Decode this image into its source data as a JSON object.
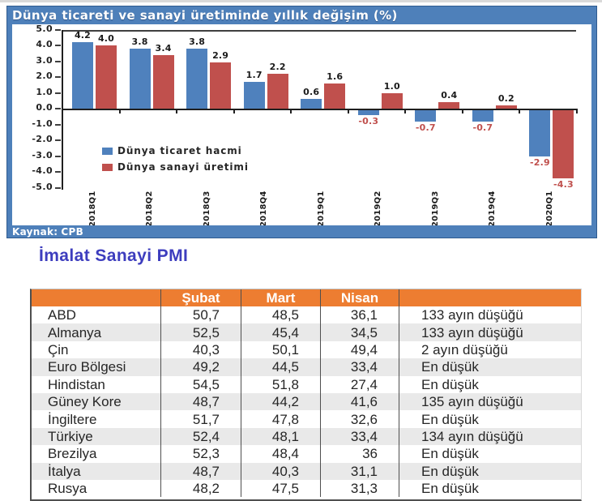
{
  "colors": {
    "chart_frame_blue": "#4e80ba",
    "bar_blue": "#4f81bd",
    "bar_red": "#c0504d",
    "negative_label_red": "#c0504d",
    "table_header_orange": "#ed7d31",
    "table_alt_row": "#e9e9e9",
    "table_title_blue": "#3d3dbe"
  },
  "chart": {
    "title": "Dünya ticareti ve sanayi üretiminde yıllık değişim (%)",
    "source_label": "Kaynak:",
    "source_value": "CPB"
  },
  "chart_data": {
    "type": "bar",
    "title": "Dünya ticareti ve sanayi üretiminde yıllık değişim (%)",
    "categories": [
      "2018Q1",
      "2018Q2",
      "2018Q3",
      "2018Q4",
      "2019Q1",
      "2019Q2",
      "2019Q3",
      "2019Q4",
      "2020Q1"
    ],
    "series": [
      {
        "name": "Dünya ticaret hacmi",
        "color": "#4f81bd",
        "values": [
          4.2,
          3.8,
          3.8,
          1.7,
          0.6,
          -0.3,
          -0.7,
          -0.7,
          -2.9
        ]
      },
      {
        "name": "Dünya sanayi üretimi",
        "color": "#c0504d",
        "values": [
          4.0,
          3.4,
          2.9,
          2.2,
          1.6,
          1.0,
          0.4,
          0.2,
          -4.3
        ]
      }
    ],
    "xlabel": "",
    "ylabel": "",
    "ylim": [
      -5.0,
      5.0
    ],
    "ytick_step": 1.0,
    "ytick_labels": [
      "5.0",
      "4.0",
      "3.0",
      "2.0",
      "1.0",
      "0.0",
      "-1.0",
      "-2.0",
      "-3.0",
      "-4.0",
      "-5.0"
    ],
    "data_labels": true,
    "grid": false,
    "legend_position": "inside-left-bottom",
    "source": "Kaynak: CPB"
  },
  "pmi_table": {
    "title": "İmalat Sanayi PMI",
    "columns": [
      "",
      "Şubat",
      "Mart",
      "Nisan",
      ""
    ],
    "rows": [
      {
        "country": "ABD",
        "subat": "50,7",
        "mart": "48,5",
        "nisan": "36,1",
        "note": "133 ayın düşüğü"
      },
      {
        "country": "Almanya",
        "subat": "52,5",
        "mart": "45,4",
        "nisan": "34,5",
        "note": "133 ayın düşüğü"
      },
      {
        "country": "Çin",
        "subat": "40,3",
        "mart": "50,1",
        "nisan": "49,4",
        "note": "2 ayın düşüğü"
      },
      {
        "country": "Euro Bölgesi",
        "subat": "49,2",
        "mart": "44,5",
        "nisan": "33,4",
        "note": "En düşük"
      },
      {
        "country": "Hindistan",
        "subat": "54,5",
        "mart": "51,8",
        "nisan": "27,4",
        "note": "En düşük"
      },
      {
        "country": "Güney Kore",
        "subat": "48,7",
        "mart": "44,2",
        "nisan": "41,6",
        "note": "135 ayın düşüğü"
      },
      {
        "country": "İngiltere",
        "subat": "51,7",
        "mart": "47,8",
        "nisan": "32,6",
        "note": "En düşük"
      },
      {
        "country": "Türkiye",
        "subat": "52,4",
        "mart": "48,1",
        "nisan": "33,4",
        "note": "134 ayın düşüğü"
      },
      {
        "country": "Brezilya",
        "subat": "52,3",
        "mart": "48,4",
        "nisan": "36",
        "note": "En düşük"
      },
      {
        "country": "İtalya",
        "subat": "48,7",
        "mart": "40,3",
        "nisan": "31,1",
        "note": "En düşük"
      },
      {
        "country": "Rusya",
        "subat": "48,2",
        "mart": "47,5",
        "nisan": "31,3",
        "note": "En düşük"
      }
    ]
  }
}
